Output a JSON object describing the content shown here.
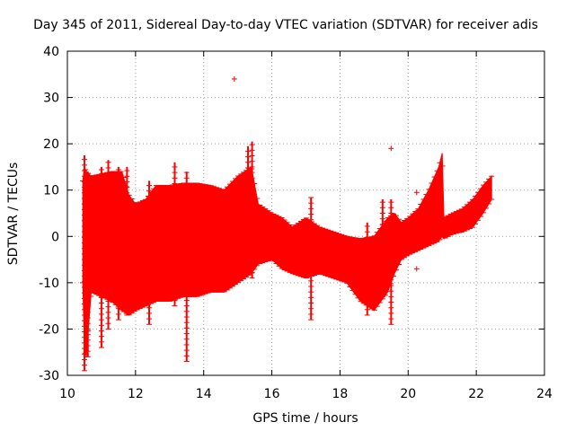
{
  "chart_data": {
    "type": "scatter",
    "title": "Day 345 of 2011, Sidereal Day-to-day VTEC variation (SDTVAR) for receiver adis",
    "xlabel": "GPS time / hours",
    "ylabel": "SDTVAR / TECUs",
    "xlim": [
      10,
      24
    ],
    "ylim": [
      -30,
      40
    ],
    "xticks": [
      10,
      12,
      14,
      16,
      18,
      20,
      22,
      24
    ],
    "yticks": [
      -30,
      -20,
      -10,
      0,
      10,
      20,
      30,
      40
    ],
    "xtick_labels": [
      "10",
      "12",
      "14",
      "16",
      "18",
      "20",
      "22",
      "24"
    ],
    "ytick_labels": [
      "-30",
      "-20",
      "-10",
      "0",
      "10",
      "20",
      "30",
      "40"
    ],
    "grid": true,
    "marker": "+",
    "color": "#ff0000",
    "envelope": {
      "x": [
        10.45,
        10.5,
        10.55,
        10.7,
        11.0,
        11.3,
        11.6,
        11.8,
        12.0,
        12.3,
        12.6,
        13.0,
        13.4,
        13.8,
        14.2,
        14.6,
        15.0,
        15.4,
        15.6,
        16.0,
        16.3,
        16.6,
        17.0,
        17.4,
        17.8,
        18.2,
        18.6,
        19.0,
        19.4,
        19.6,
        19.8,
        20.0,
        20.3,
        20.6,
        20.9,
        21.0,
        21.05,
        21.3,
        21.6,
        21.9,
        22.2,
        22.45
      ],
      "upper": [
        12,
        15,
        14,
        13,
        13.5,
        14,
        14,
        9,
        7,
        8,
        11,
        11,
        11.5,
        11.5,
        11,
        10,
        13,
        15,
        7,
        5,
        4,
        2,
        4,
        2,
        1,
        0,
        -0.5,
        0,
        4,
        5,
        3,
        4,
        6,
        10,
        15,
        18,
        4,
        5,
        6,
        8,
        11,
        13
      ],
      "lower": [
        -10,
        -24,
        -26,
        -12,
        -13,
        -14,
        -16,
        -17,
        -16,
        -15,
        -14,
        -14,
        -13,
        -13,
        -12,
        -12,
        -10,
        -8,
        -6,
        -5,
        -7,
        -8,
        -9,
        -8,
        -9,
        -10,
        -14,
        -16,
        -12,
        -8,
        -5,
        -4,
        -3,
        -2,
        -1,
        0,
        -0.5,
        0.5,
        1,
        2,
        5,
        8
      ]
    },
    "spikes": [
      {
        "x": 10.5,
        "low": -29,
        "high": 17.5
      },
      {
        "x": 10.6,
        "low": -26,
        "high": 14
      },
      {
        "x": 11.0,
        "low": -24,
        "high": 15
      },
      {
        "x": 11.2,
        "low": -20,
        "high": 16.5
      },
      {
        "x": 11.5,
        "low": -18,
        "high": 15
      },
      {
        "x": 11.75,
        "low": -17,
        "high": 15
      },
      {
        "x": 12.4,
        "low": -19,
        "high": 12
      },
      {
        "x": 13.15,
        "low": -15,
        "high": 16
      },
      {
        "x": 13.5,
        "low": -27,
        "high": 14
      },
      {
        "x": 15.3,
        "low": -8,
        "high": 19.5
      },
      {
        "x": 15.42,
        "low": -9,
        "high": 20.5
      },
      {
        "x": 17.15,
        "low": -18,
        "high": 8.5
      },
      {
        "x": 18.8,
        "low": -17,
        "high": 3
      },
      {
        "x": 19.5,
        "low": -19,
        "high": 8
      },
      {
        "x": 19.25,
        "low": -13,
        "high": 8
      }
    ],
    "outliers": [
      {
        "x": 14.9,
        "y": 34
      },
      {
        "x": 19.5,
        "y": 19
      },
      {
        "x": 20.25,
        "y": 9.5
      },
      {
        "x": 20.25,
        "y": -7
      }
    ]
  }
}
